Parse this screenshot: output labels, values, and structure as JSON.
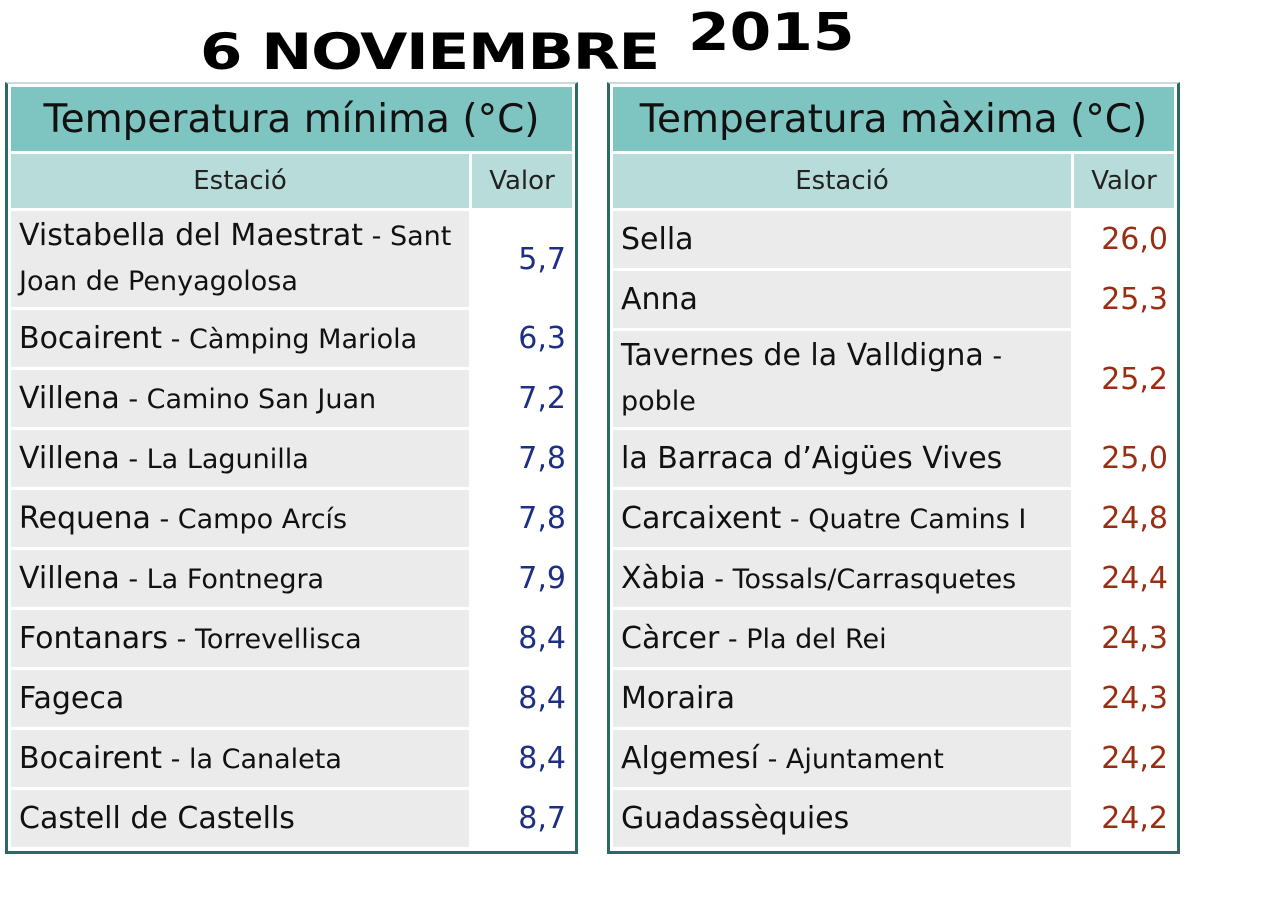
{
  "date": {
    "day_month": "6 NOVIEMBRE",
    "year": "2015"
  },
  "min_table": {
    "title": "Temperatura mínima (°C)",
    "col_station": "Estació",
    "col_value": "Valor",
    "rows": [
      {
        "station": "Vistabella del Maestrat",
        "sub": " - Sant Joan de Penyagolosa",
        "value": "5,7"
      },
      {
        "station": "Bocairent",
        "sub": " - Càmping Mariola",
        "value": "6,3"
      },
      {
        "station": "Villena",
        "sub": " - Camino San Juan",
        "value": "7,2"
      },
      {
        "station": "Villena",
        "sub": " - La Lagunilla",
        "value": "7,8"
      },
      {
        "station": "Requena",
        "sub": " - Campo Arcís",
        "value": "7,8"
      },
      {
        "station": "Villena",
        "sub": " - La Fontnegra",
        "value": "7,9"
      },
      {
        "station": "Fontanars",
        "sub": " - Torrevellisca",
        "value": "8,4"
      },
      {
        "station": "Fageca",
        "sub": "",
        "value": "8,4"
      },
      {
        "station": "Bocairent",
        "sub": " - la Canaleta",
        "value": "8,4"
      },
      {
        "station": "Castell de Castells",
        "sub": "",
        "value": "8,7"
      }
    ]
  },
  "max_table": {
    "title": "Temperatura màxima (°C)",
    "col_station": "Estació",
    "col_value": "Valor",
    "rows": [
      {
        "station": "Sella",
        "sub": "",
        "value": "26,0"
      },
      {
        "station": "Anna",
        "sub": "",
        "value": "25,3"
      },
      {
        "station": "Tavernes de la Valldigna",
        "sub": " - poble",
        "value": "25,2"
      },
      {
        "station": "la Barraca d’Aigües Vives",
        "sub": "",
        "value": "25,0"
      },
      {
        "station": "Carcaixent",
        "sub": " - Quatre Camins I",
        "value": "24,8"
      },
      {
        "station": "Xàbia",
        "sub": " - Tossals/Carrasquetes",
        "value": "24,4"
      },
      {
        "station": "Càrcer",
        "sub": " - Pla del Rei",
        "value": "24,3"
      },
      {
        "station": "Moraira",
        "sub": "",
        "value": "24,3"
      },
      {
        "station": "Algemesí",
        "sub": " - Ajuntament",
        "value": "24,2"
      },
      {
        "station": "Guadassèquies",
        "sub": "",
        "value": "24,2"
      }
    ]
  }
}
